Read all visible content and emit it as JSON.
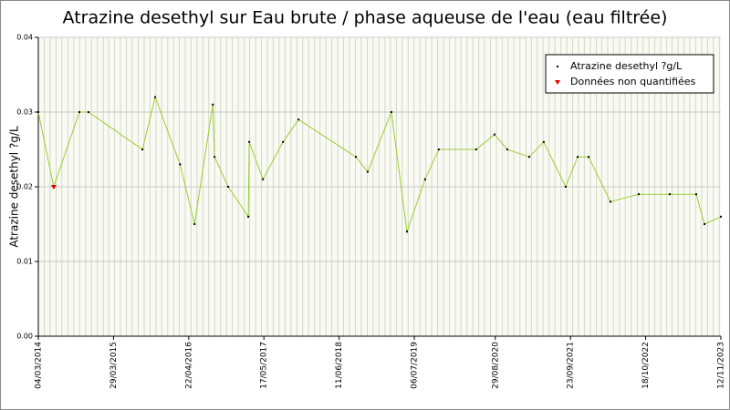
{
  "chart_data": {
    "type": "line",
    "title": "Atrazine desethyl sur Eau brute / phase aqueuse de l'eau (eau filtrée)",
    "y_label": "Atrazine desethyl ?g/L",
    "x": [
      "04/03/2014",
      "23/05/2014",
      "03/10/2014",
      "19/11/2014",
      "26/08/2015",
      "31/10/2015",
      "08/03/2016",
      "22/05/2016",
      "25/08/2016",
      "03/09/2016",
      "13/11/2016",
      "25/02/2017",
      "02/03/2017",
      "12/05/2017",
      "24/08/2017",
      "13/11/2017",
      "06/09/2018",
      "06/11/2018",
      "09/03/2019",
      "29/05/2019",
      "31/08/2019",
      "10/11/2019",
      "22/05/2020",
      "25/08/2020",
      "30/10/2020",
      "21/02/2021",
      "07/05/2021",
      "29/08/2021",
      "30/10/2021",
      "26/12/2021",
      "18/04/2022",
      "12/09/2022",
      "20/02/2023",
      "07/07/2023",
      "19/08/2023",
      "12/11/2023"
    ],
    "series": [
      {
        "name": "Atrazine desethyl ?g/L",
        "color": "#000000",
        "line_color": "#9acd32",
        "values": [
          0.03,
          0.02,
          0.03,
          0.03,
          0.025,
          0.032,
          0.023,
          0.015,
          0.031,
          0.024,
          0.02,
          0.016,
          0.026,
          0.021,
          0.026,
          0.029,
          0.024,
          0.022,
          0.03,
          0.014,
          0.021,
          0.025,
          0.025,
          0.027,
          0.025,
          0.024,
          0.026,
          0.02,
          0.024,
          0.024,
          0.018,
          0.019,
          0.019,
          0.019,
          0.015,
          0.016
        ]
      },
      {
        "name": "Données non quantifiées",
        "color": "#e00000",
        "x": [
          "23/05/2014"
        ],
        "values": [
          0.02
        ]
      }
    ],
    "xlim": [
      "04/03/2014",
      "12/11/2023"
    ],
    "xticks": [
      "04/03/2014",
      "29/03/2015",
      "22/04/2016",
      "17/05/2017",
      "11/06/2018",
      "06/07/2019",
      "29/08/2020",
      "23/09/2021",
      "18/10/2022",
      "12/11/2023"
    ],
    "ylim": [
      0,
      0.04
    ],
    "yticks": [
      {
        "value": 0,
        "label": "0.00"
      },
      0.01,
      0.02,
      0.03,
      0.04
    ],
    "grid": true,
    "legend": "top-right"
  }
}
